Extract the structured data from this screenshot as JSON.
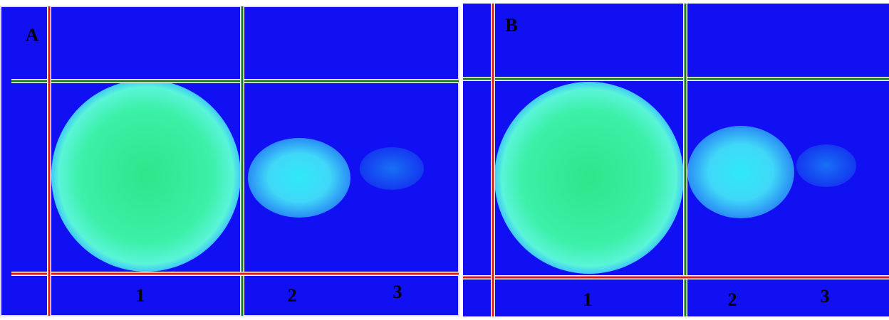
{
  "panels": [
    {
      "label": "A",
      "regions": [
        "1",
        "2",
        "3"
      ]
    },
    {
      "label": "B",
      "regions": [
        "1",
        "2",
        "3"
      ]
    }
  ]
}
